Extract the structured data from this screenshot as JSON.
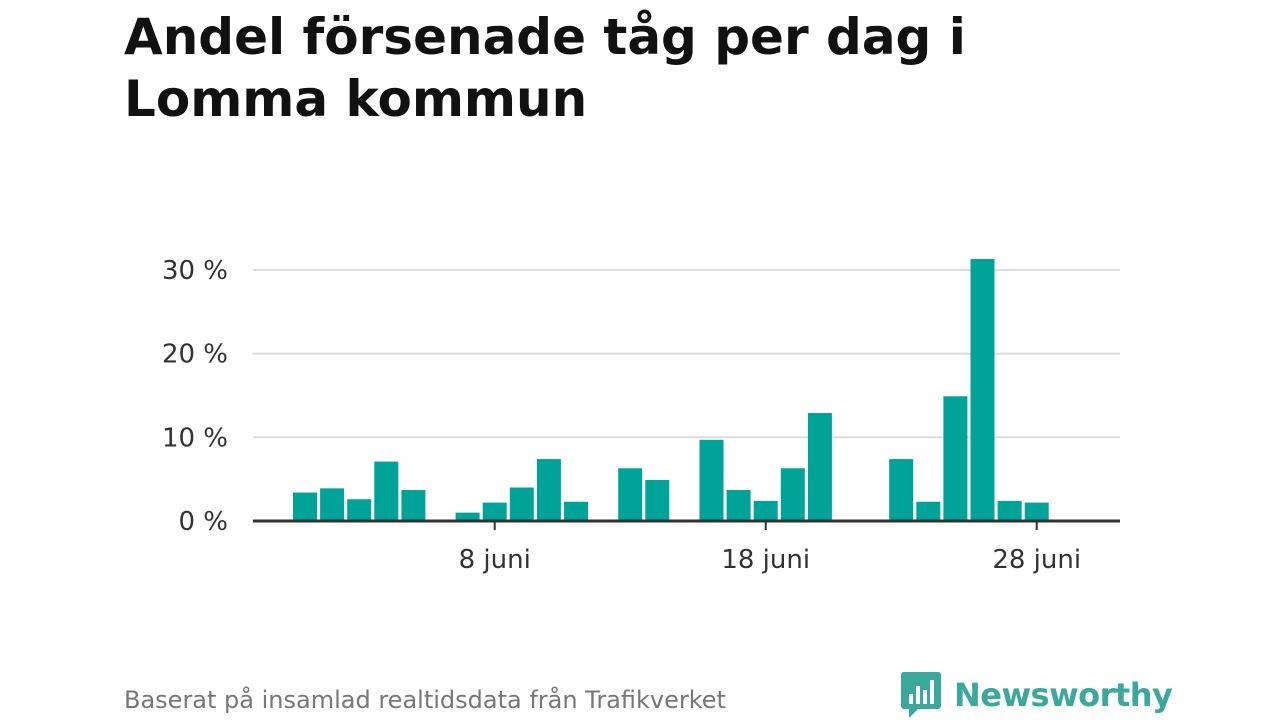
{
  "title": "Andel försenade tåg per dag i Lomma kommun",
  "footer": "Baserat på insamlad realtidsdata från Trafikverket",
  "brand": {
    "name": "Newsworthy",
    "logo_icon": "bar-chart-speech-bubble-icon"
  },
  "colors": {
    "bar": "#00a398",
    "grid": "#dddddd",
    "axis": "#333333",
    "brand": "#3aa89a"
  },
  "chart_data": {
    "type": "bar",
    "x_unit": "day of June",
    "x": [
      1,
      2,
      3,
      4,
      5,
      7,
      8,
      9,
      10,
      11,
      13,
      14,
      16,
      17,
      18,
      19,
      20,
      23,
      24,
      25,
      26,
      27,
      28
    ],
    "values": [
      3.4,
      3.9,
      2.6,
      7.1,
      3.7,
      1.0,
      2.2,
      4.0,
      7.4,
      2.3,
      6.3,
      4.9,
      9.7,
      3.7,
      2.4,
      6.3,
      12.9,
      7.4,
      2.3,
      14.9,
      31.3,
      2.4,
      2.2
    ],
    "yticks": [
      {
        "value": 0,
        "label": "0 %"
      },
      {
        "value": 10,
        "label": "10 %"
      },
      {
        "value": 20,
        "label": "20 %"
      },
      {
        "value": 30,
        "label": "30 %"
      }
    ],
    "xticks": [
      {
        "value": 8,
        "label": "8 juni"
      },
      {
        "value": 18,
        "label": "18 juni"
      },
      {
        "value": 28,
        "label": "28 juni"
      }
    ],
    "ylim": [
      0,
      32
    ],
    "grid": true
  }
}
